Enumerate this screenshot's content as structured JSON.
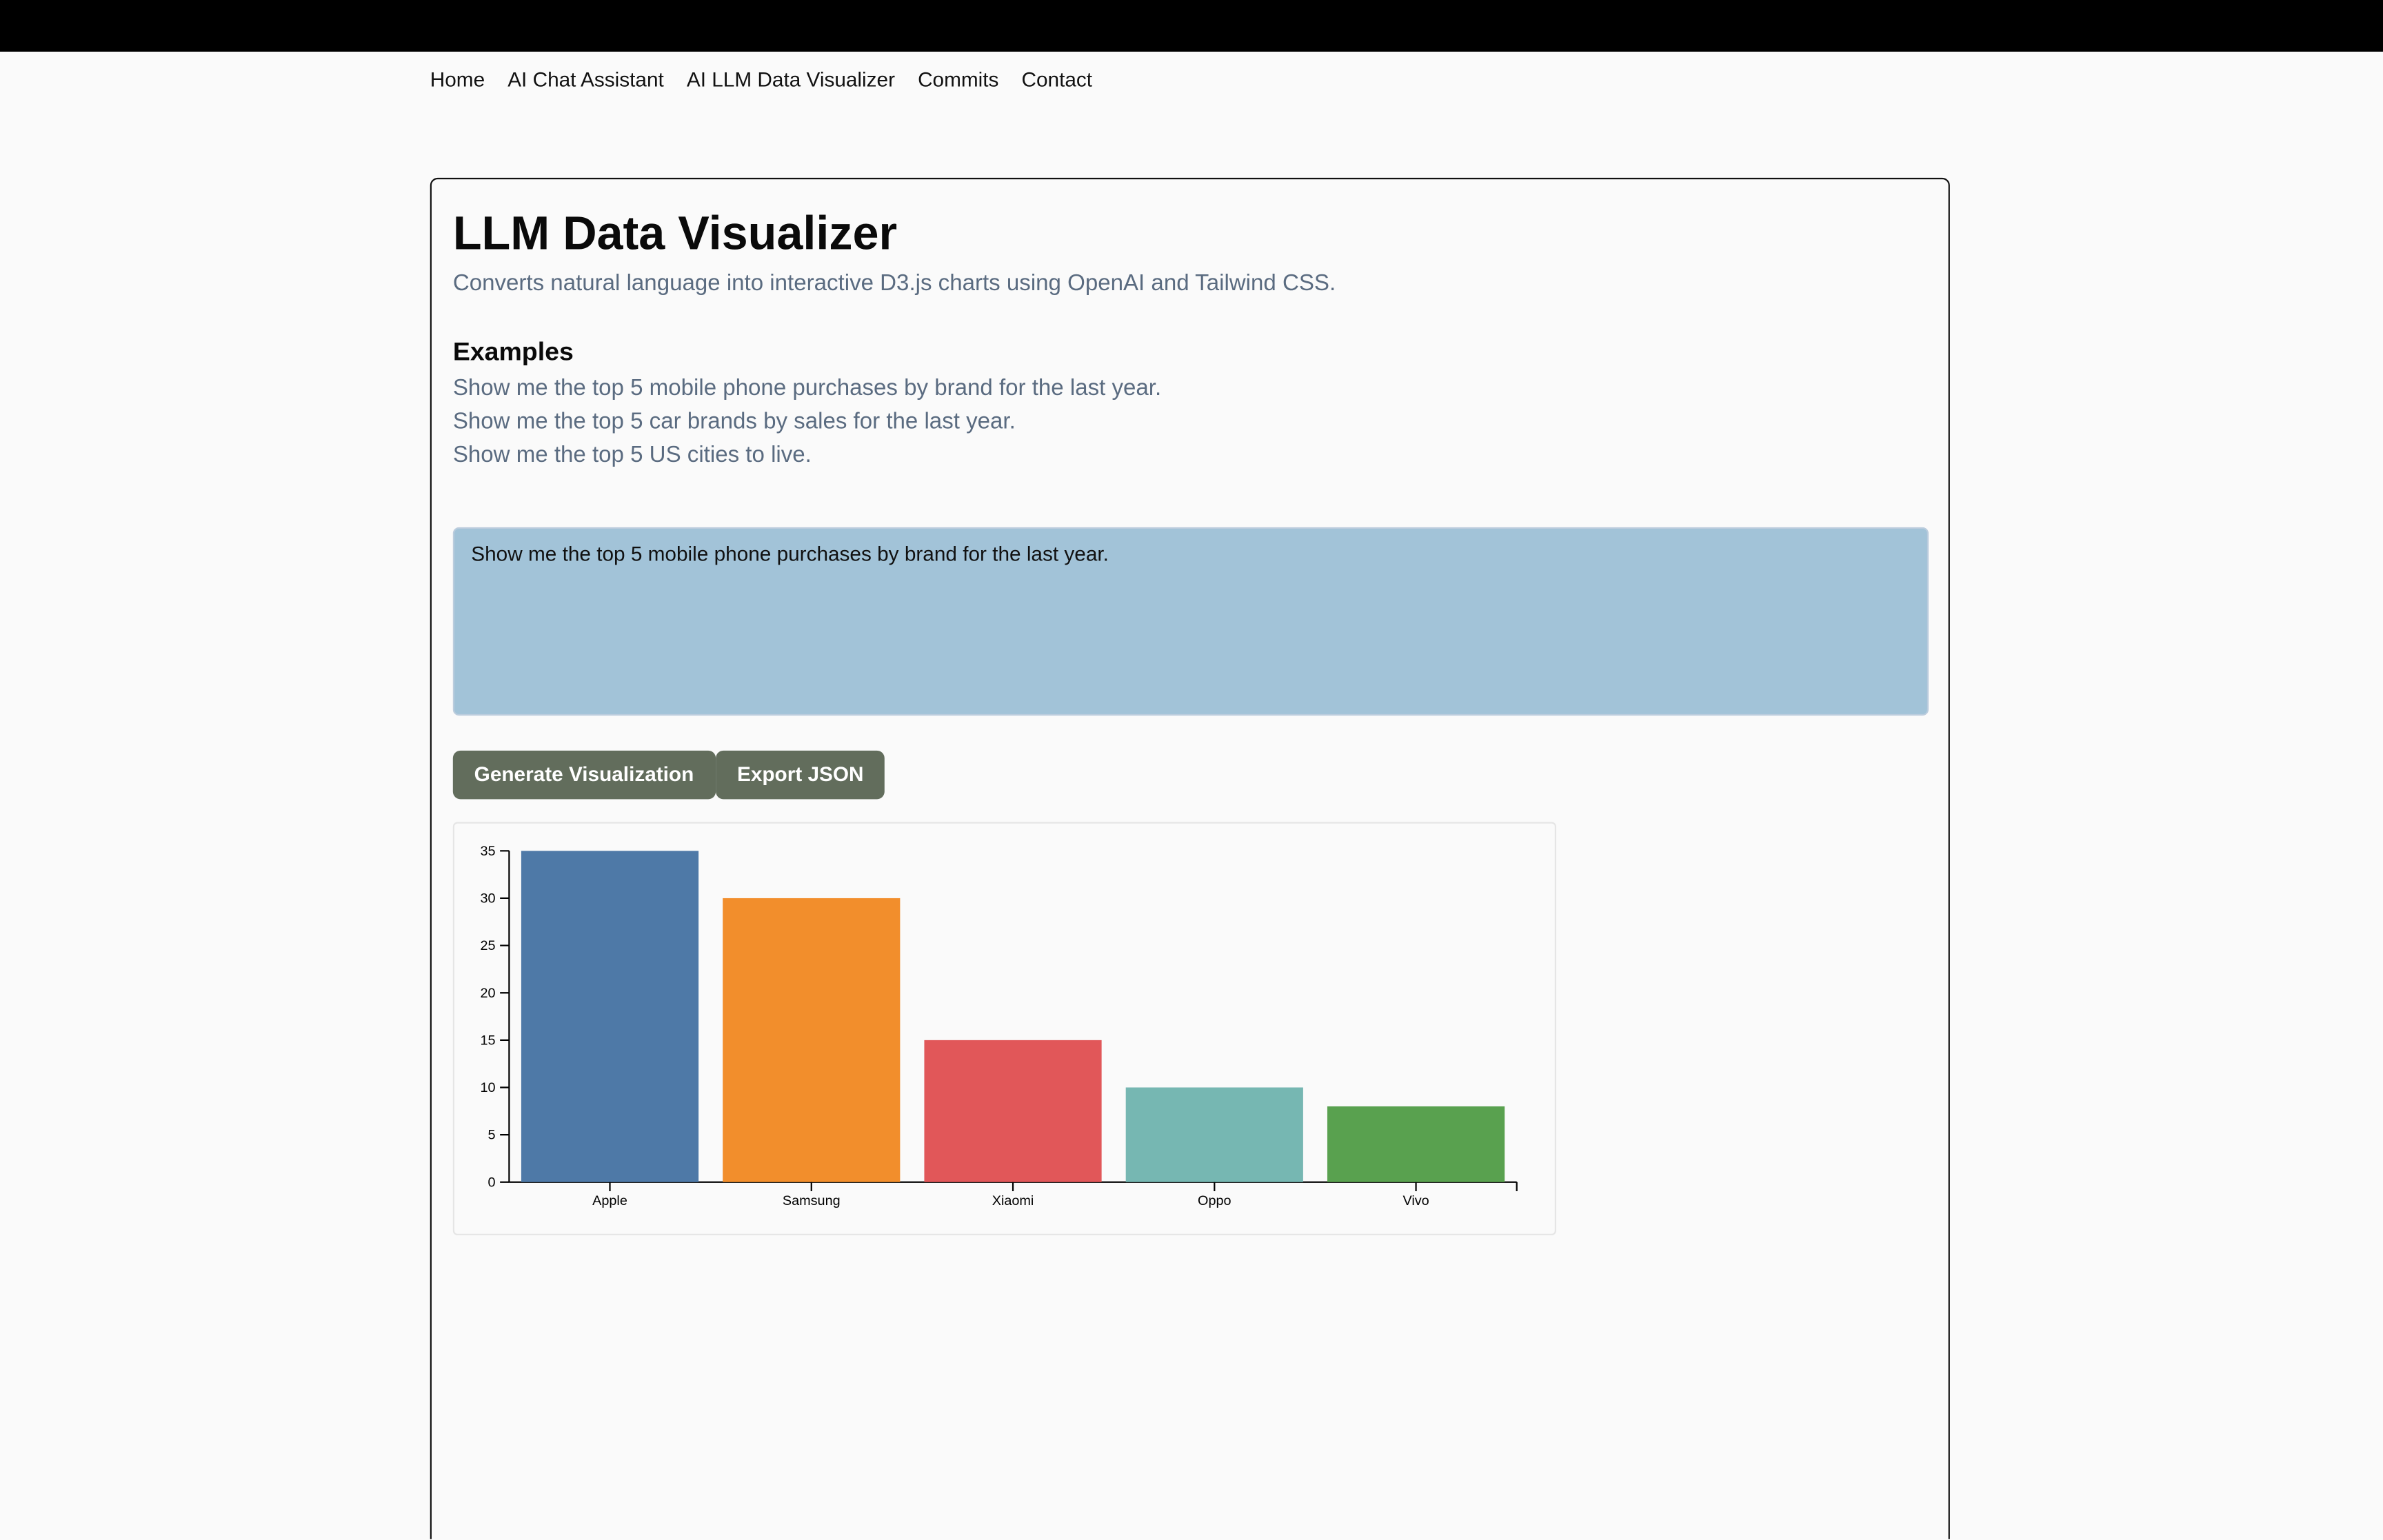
{
  "nav": [
    "Home",
    "AI Chat Assistant",
    "AI LLM Data Visualizer",
    "Commits",
    "Contact"
  ],
  "header": {
    "title": "LLM Data Visualizer",
    "subtitle": "Converts natural language into interactive D3.js charts using OpenAI and Tailwind CSS."
  },
  "examples": {
    "heading": "Examples",
    "items": [
      "Show me the top 5 mobile phone purchases by brand for the last year.",
      "Show me the top 5 car brands by sales for the last year.",
      "Show me the top 5 US cities to live."
    ]
  },
  "input": {
    "text": "Show me the top 5 mobile phone purchases by brand for the last year."
  },
  "buttons": [
    "Generate Visualization",
    "Export JSON"
  ],
  "chart_data": {
    "type": "bar",
    "categories": [
      "Apple",
      "Samsung",
      "Xiaomi",
      "Oppo",
      "Vivo"
    ],
    "values": [
      35,
      30,
      15,
      10,
      8
    ],
    "colors": [
      "#4e79a7",
      "#f28e2c",
      "#e15759",
      "#76b7b2",
      "#59a14f"
    ],
    "ylim": [
      0,
      35
    ],
    "yticks": [
      0,
      5,
      10,
      15,
      20,
      25,
      30,
      35
    ]
  }
}
